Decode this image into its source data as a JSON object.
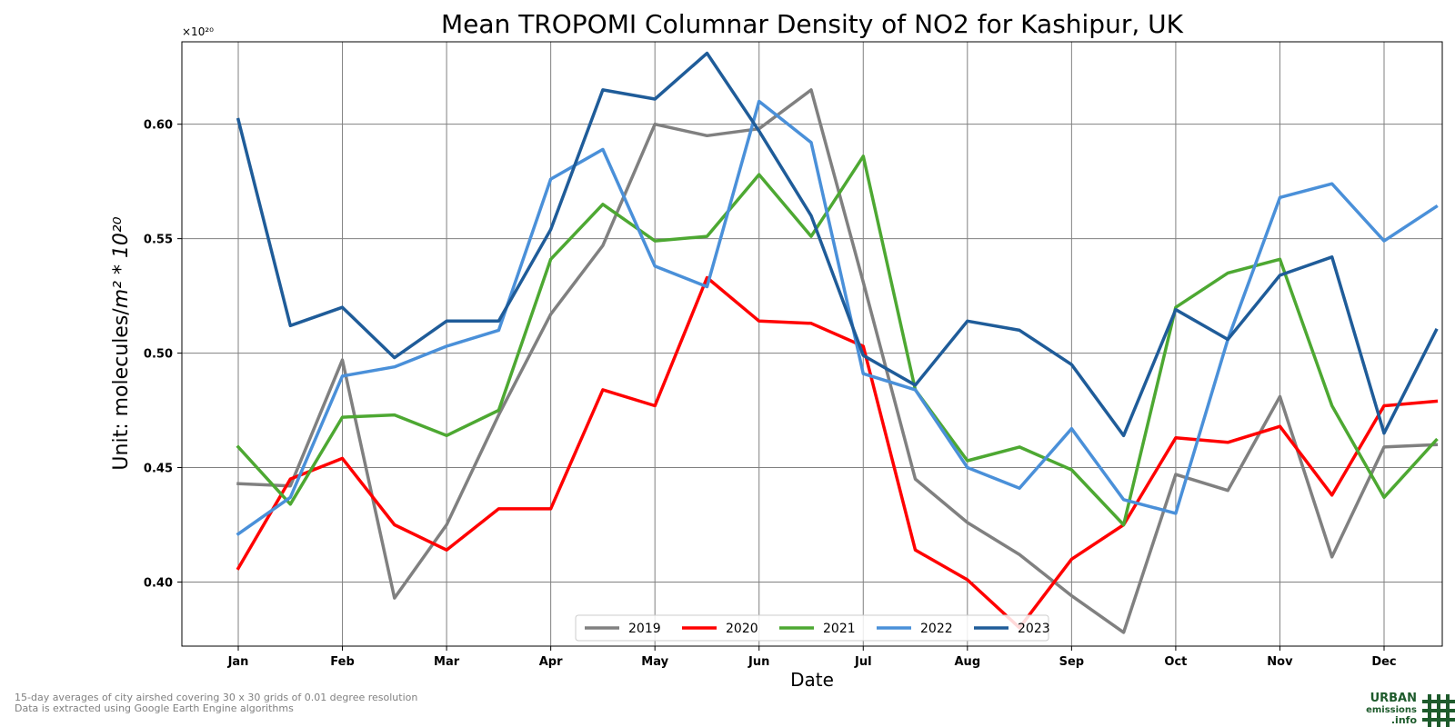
{
  "chart_data": {
    "type": "line",
    "title": "Mean TROPOMI Columnar Density of NO2 for Kashipur, UK",
    "xlabel": "Date",
    "ylabel_text": "Unit: molecules/",
    "ylabel_math": "m² * 10²⁰",
    "y_offset_label": "×10²⁰",
    "ylim": [
      0.372,
      0.636
    ],
    "yticks": [
      0.4,
      0.45,
      0.5,
      0.55,
      0.6
    ],
    "ytick_labels": [
      "0.40",
      "0.45",
      "0.50",
      "0.55",
      "0.60"
    ],
    "x_month_labels": [
      "Jan",
      "Feb",
      "Mar",
      "Apr",
      "May",
      "Jun",
      "Jul",
      "Aug",
      "Sep",
      "Oct",
      "Nov",
      "Dec"
    ],
    "x_points_per_month": 2,
    "grid": true,
    "legend_position": "bottom-center",
    "series": [
      {
        "name": "2019",
        "color": "#808080",
        "values": [
          0.443,
          0.442,
          0.497,
          0.393,
          0.425,
          0.473,
          0.517,
          0.547,
          0.6,
          0.595,
          0.598,
          0.615,
          0.531,
          0.445,
          0.426,
          0.412,
          0.394,
          0.378,
          0.447,
          0.44,
          0.481,
          0.411,
          0.459,
          0.46
        ]
      },
      {
        "name": "2020",
        "color": "#ff0000",
        "values": [
          0.406,
          0.445,
          0.454,
          0.425,
          0.414,
          0.432,
          0.432,
          0.484,
          0.477,
          0.533,
          0.514,
          0.513,
          0.503,
          0.414,
          0.401,
          0.38,
          0.41,
          0.425,
          0.463,
          0.461,
          0.468,
          0.438,
          0.477,
          0.479
        ]
      },
      {
        "name": "2021",
        "color": "#4da832",
        "values": [
          0.459,
          0.434,
          0.472,
          0.473,
          0.464,
          0.475,
          0.541,
          0.565,
          0.549,
          0.551,
          0.578,
          0.551,
          0.586,
          0.484,
          0.453,
          0.459,
          0.449,
          0.425,
          0.52,
          0.535,
          0.541,
          0.477,
          0.437,
          0.462
        ]
      },
      {
        "name": "2022",
        "color": "#4a90d9",
        "values": [
          0.421,
          0.437,
          0.49,
          0.494,
          0.503,
          0.51,
          0.576,
          0.589,
          0.538,
          0.529,
          0.61,
          0.592,
          0.491,
          0.484,
          0.45,
          0.441,
          0.467,
          0.436,
          0.43,
          0.506,
          0.568,
          0.574,
          0.549,
          0.564
        ]
      },
      {
        "name": "2023",
        "color": "#1f5c99",
        "values": [
          0.602,
          0.512,
          0.52,
          0.498,
          0.514,
          0.514,
          0.554,
          0.615,
          0.611,
          0.631,
          0.597,
          0.56,
          0.499,
          0.486,
          0.514,
          0.51,
          0.495,
          0.464,
          0.519,
          0.506,
          0.534,
          0.542,
          0.465,
          0.51
        ]
      }
    ]
  },
  "footnotes": {
    "line1": "15-day averages of city airshed covering 30 x 30 grids of 0.01 degree resolution",
    "line2": "Data is extracted using Google Earth Engine algorithms"
  },
  "logo": {
    "line1": "URBAN",
    "line2": "emissions",
    "line3": ".info",
    "color": "#1e5b2c"
  }
}
